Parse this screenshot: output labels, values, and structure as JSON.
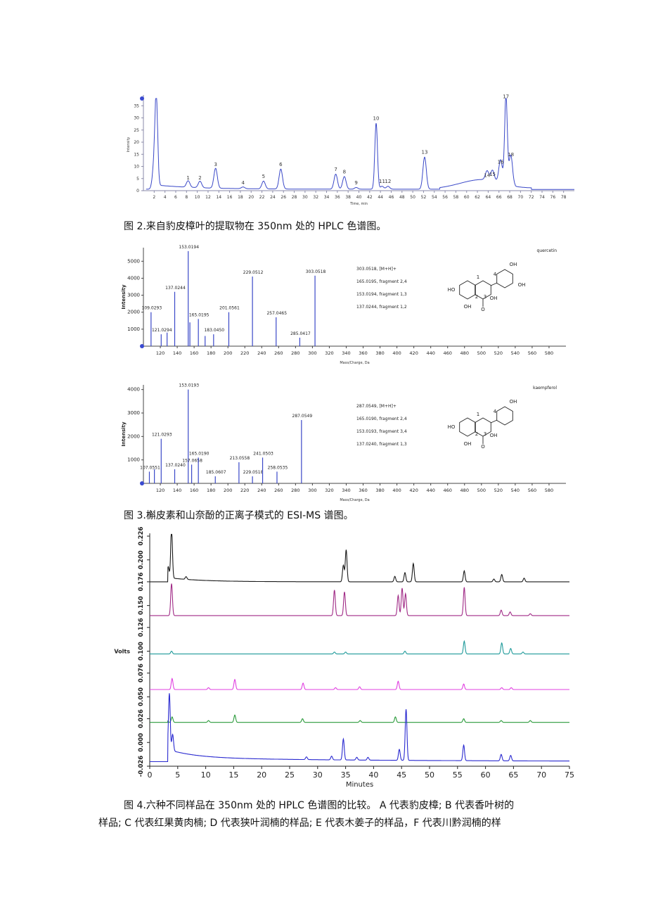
{
  "captions": {
    "fig2": "图  2.来自豹皮樟叶的提取物在 350nm 处的 HPLC 色谱图。",
    "fig3": "图  3.槲皮素和山奈酚的正离子模式的 ESI-MS 谱图。",
    "fig4_line1": "图  4.六种不同样品在 350nm 处的 HPLC 色谱图的比较。  A 代表豹皮樟; B 代表香叶树的",
    "fig4_line2": "样品; C 代表红果黄肉楠; D 代表狭叶润楠的样品; E 代表木姜子的样品，F 代表川黔润楠的样"
  },
  "chart_data": [
    {
      "type": "line",
      "id": "fig2-hplc",
      "xlabel": "Time, min",
      "ylabel": "Intensity",
      "xlim": [
        0,
        80
      ],
      "ylim": [
        0,
        38
      ],
      "xticks": [
        2,
        4,
        6,
        8,
        10,
        12,
        14,
        16,
        18,
        20,
        22,
        24,
        26,
        28,
        30,
        32,
        34,
        36,
        38,
        40,
        42,
        44,
        46,
        48,
        50,
        52,
        54,
        56,
        58,
        60,
        62,
        64,
        66,
        68,
        70,
        72,
        74,
        76,
        78
      ],
      "yticks": [
        0,
        5,
        10,
        15,
        20,
        25,
        30,
        35
      ],
      "peaks": [
        {
          "label": "",
          "x": 2.0,
          "y": 11
        },
        {
          "label": "",
          "x": 2.4,
          "y": 36
        },
        {
          "label": "1",
          "x": 8.3,
          "y": 3.5
        },
        {
          "label": "2",
          "x": 10.5,
          "y": 3.5
        },
        {
          "label": "3",
          "x": 13.4,
          "y": 9
        },
        {
          "label": "4",
          "x": 18.5,
          "y": 1.5
        },
        {
          "label": "5",
          "x": 22.3,
          "y": 4
        },
        {
          "label": "6",
          "x": 25.5,
          "y": 9
        },
        {
          "label": "7",
          "x": 35.7,
          "y": 7
        },
        {
          "label": "8",
          "x": 37.3,
          "y": 6
        },
        {
          "label": "9",
          "x": 39.5,
          "y": 1.5
        },
        {
          "label": "10",
          "x": 43.2,
          "y": 28
        },
        {
          "label": "11",
          "x": 44.3,
          "y": 2
        },
        {
          "label": "12",
          "x": 45.4,
          "y": 2
        },
        {
          "label": "13",
          "x": 52.2,
          "y": 14
        },
        {
          "label": "14",
          "x": 63.8,
          "y": 4.5
        },
        {
          "label": "15",
          "x": 64.8,
          "y": 5
        },
        {
          "label": "16",
          "x": 66.3,
          "y": 10
        },
        {
          "label": "17",
          "x": 67.3,
          "y": 37
        },
        {
          "label": "18",
          "x": 68.2,
          "y": 13
        }
      ]
    },
    {
      "type": "bar",
      "id": "fig3-quercetin",
      "title": "quercetin",
      "xlabel": "Mass/Charge, Da",
      "ylabel": "Intensity",
      "xlim": [
        100,
        600
      ],
      "ylim": [
        0,
        5800
      ],
      "xticks": [
        120,
        140,
        160,
        180,
        200,
        220,
        240,
        260,
        280,
        300,
        320,
        340,
        360,
        380,
        400,
        420,
        440,
        460,
        480,
        500,
        520,
        540,
        560,
        580
      ],
      "yticks": [
        1000,
        2000,
        3000,
        4000,
        5000
      ],
      "peaks": [
        {
          "mz": 109.0293,
          "i": 2000,
          "label": "109.0293"
        },
        {
          "mz": 121.0294,
          "i": 700,
          "label": "121.0294"
        },
        {
          "mz": 128,
          "i": 800,
          "label": ""
        },
        {
          "mz": 137.0244,
          "i": 3200,
          "label": "137.0244"
        },
        {
          "mz": 153.0194,
          "i": 5600,
          "label": "153.0194"
        },
        {
          "mz": 155,
          "i": 1400,
          "label": ""
        },
        {
          "mz": 165.0195,
          "i": 1600,
          "label": "165.0195"
        },
        {
          "mz": 173,
          "i": 600,
          "label": ""
        },
        {
          "mz": 183.045,
          "i": 700,
          "label": "183.0450"
        },
        {
          "mz": 201.0561,
          "i": 2000,
          "label": "201.0561"
        },
        {
          "mz": 229.0512,
          "i": 4100,
          "label": "229.0512"
        },
        {
          "mz": 257.0465,
          "i": 1700,
          "label": "257.0465"
        },
        {
          "mz": 285.0417,
          "i": 500,
          "label": "285.0417"
        },
        {
          "mz": 303.0518,
          "i": 4150,
          "label": "303.0518"
        }
      ],
      "annotations": [
        "303.0518, [M+H]+",
        "165.0195, fragment 2,4",
        "153.0194, fragment 1,3",
        "137.0244, fragment 1,2"
      ],
      "structure": {
        "labels": [
          "HO",
          "OH",
          "OH",
          "OH",
          "OH",
          "O",
          "1",
          "2",
          "3",
          "4"
        ]
      }
    },
    {
      "type": "bar",
      "id": "fig3-kaempferol",
      "title": "kaempferol",
      "xlabel": "Mass/Charge, Da",
      "ylabel": "Intensity",
      "xlim": [
        100,
        600
      ],
      "ylim": [
        0,
        4200
      ],
      "xticks": [
        120,
        140,
        160,
        180,
        200,
        220,
        240,
        260,
        280,
        300,
        320,
        340,
        360,
        380,
        400,
        420,
        440,
        460,
        480,
        500,
        520,
        540,
        560,
        580
      ],
      "yticks": [
        1000,
        2000,
        3000,
        4000
      ],
      "peaks": [
        {
          "mz": 107.0551,
          "i": 500,
          "label": "107.0551"
        },
        {
          "mz": 113,
          "i": 600,
          "label": ""
        },
        {
          "mz": 121.0293,
          "i": 1900,
          "label": "121.0293"
        },
        {
          "mz": 137.024,
          "i": 600,
          "label": "137.0240"
        },
        {
          "mz": 153.0193,
          "i": 4000,
          "label": "153.0193"
        },
        {
          "mz": 157.0658,
          "i": 800,
          "label": "157.0658"
        },
        {
          "mz": 165.019,
          "i": 1100,
          "label": "165.0190"
        },
        {
          "mz": 185.0607,
          "i": 300,
          "label": "185.0607"
        },
        {
          "mz": 213.0558,
          "i": 900,
          "label": "213.0558"
        },
        {
          "mz": 229.0518,
          "i": 300,
          "label": "229.0518"
        },
        {
          "mz": 241.0503,
          "i": 1100,
          "label": "241.0503"
        },
        {
          "mz": 258.0535,
          "i": 500,
          "label": "258.0535"
        },
        {
          "mz": 287.0549,
          "i": 2700,
          "label": "287.0549"
        }
      ],
      "annotations": [
        "287.0549, [M+H]+",
        "165.0190, fragment 2,4",
        "153.0193, fragment 3,4",
        "137.0240, fragment 1,3"
      ],
      "structure": {
        "labels": [
          "HO",
          "OH",
          "OH",
          "OH",
          "O",
          "1",
          "2",
          "3",
          "4"
        ]
      }
    },
    {
      "type": "line",
      "id": "fig4-overlay",
      "xlabel": "Minutes",
      "ylabel": "Volts",
      "xlim": [
        0,
        75
      ],
      "ylim": [
        -0.026,
        0.226
      ],
      "xticks": [
        0,
        5,
        10,
        15,
        20,
        25,
        30,
        35,
        40,
        45,
        50,
        55,
        60,
        65,
        70,
        75
      ],
      "yticks": [
        -0.026,
        0.0,
        0.026,
        0.05,
        0.076,
        0.1,
        0.126,
        0.15,
        0.176,
        0.2,
        0.226
      ],
      "ytick_labels": [
        "-0.026",
        "0.000",
        "0.026",
        "0.050",
        "0.076",
        "0.100",
        "0.126",
        "0.150",
        "0.176",
        "0.200",
        "0.226"
      ],
      "series": [
        {
          "color": "#1a1a1a",
          "baseline": 0.176,
          "peaks": [
            [
              3.3,
              0.012
            ],
            [
              3.9,
              0.055
            ],
            [
              6.5,
              0.003
            ],
            [
              34.6,
              0.018
            ],
            [
              35.1,
              0.035
            ],
            [
              43.8,
              0.006
            ],
            [
              45.6,
              0.01
            ],
            [
              47.1,
              0.02
            ],
            [
              56.2,
              0.012
            ],
            [
              61.5,
              0.003
            ],
            [
              62.9,
              0.008
            ],
            [
              66.9,
              0.004
            ]
          ]
        },
        {
          "color": "#a02a86",
          "baseline": 0.139,
          "peaks": [
            [
              3.9,
              0.035
            ],
            [
              33.0,
              0.028
            ],
            [
              34.8,
              0.026
            ],
            [
              44.4,
              0.022
            ],
            [
              45.1,
              0.03
            ],
            [
              45.7,
              0.024
            ],
            [
              56.2,
              0.031
            ],
            [
              62.8,
              0.006
            ],
            [
              64.4,
              0.004
            ],
            [
              68.0,
              0.002
            ]
          ]
        },
        {
          "color": "#1f9a9a",
          "baseline": 0.097,
          "peaks": [
            [
              3.9,
              0.003
            ],
            [
              33.0,
              0.002
            ],
            [
              35.0,
              0.002
            ],
            [
              45.6,
              0.003
            ],
            [
              56.2,
              0.014
            ],
            [
              62.9,
              0.012
            ],
            [
              64.5,
              0.006
            ],
            [
              66.7,
              0.002
            ]
          ]
        },
        {
          "color": "#e040e0",
          "baseline": 0.058,
          "peaks": [
            [
              4.0,
              0.012
            ],
            [
              10.5,
              0.002
            ],
            [
              15.2,
              0.011
            ],
            [
              27.4,
              0.007
            ],
            [
              33.2,
              0.002
            ],
            [
              37.5,
              0.003
            ],
            [
              44.4,
              0.009
            ],
            [
              56.1,
              0.006
            ],
            [
              62.9,
              0.002
            ],
            [
              64.6,
              0.002
            ]
          ]
        },
        {
          "color": "#2a9a3a",
          "baseline": 0.022,
          "peaks": [
            [
              3.0,
              0.008
            ],
            [
              4.0,
              0.006
            ],
            [
              10.5,
              0.002
            ],
            [
              15.2,
              0.008
            ],
            [
              27.3,
              0.004
            ],
            [
              37.6,
              0.002
            ],
            [
              43.9,
              0.006
            ],
            [
              56.1,
              0.004
            ],
            [
              62.8,
              0.002
            ],
            [
              68.0,
              0.002
            ]
          ]
        },
        {
          "color": "#2a2ad0",
          "baseline": -0.021,
          "peaks": [
            [
              3.5,
              0.062
            ],
            [
              4.1,
              0.018
            ],
            [
              28.0,
              0.003
            ],
            [
              32.5,
              0.004
            ],
            [
              34.6,
              0.023
            ],
            [
              37.0,
              0.003
            ],
            [
              39.0,
              0.003
            ],
            [
              44.6,
              0.012
            ],
            [
              45.8,
              0.056
            ],
            [
              56.1,
              0.017
            ],
            [
              62.8,
              0.007
            ],
            [
              64.5,
              0.006
            ]
          ]
        }
      ]
    }
  ]
}
